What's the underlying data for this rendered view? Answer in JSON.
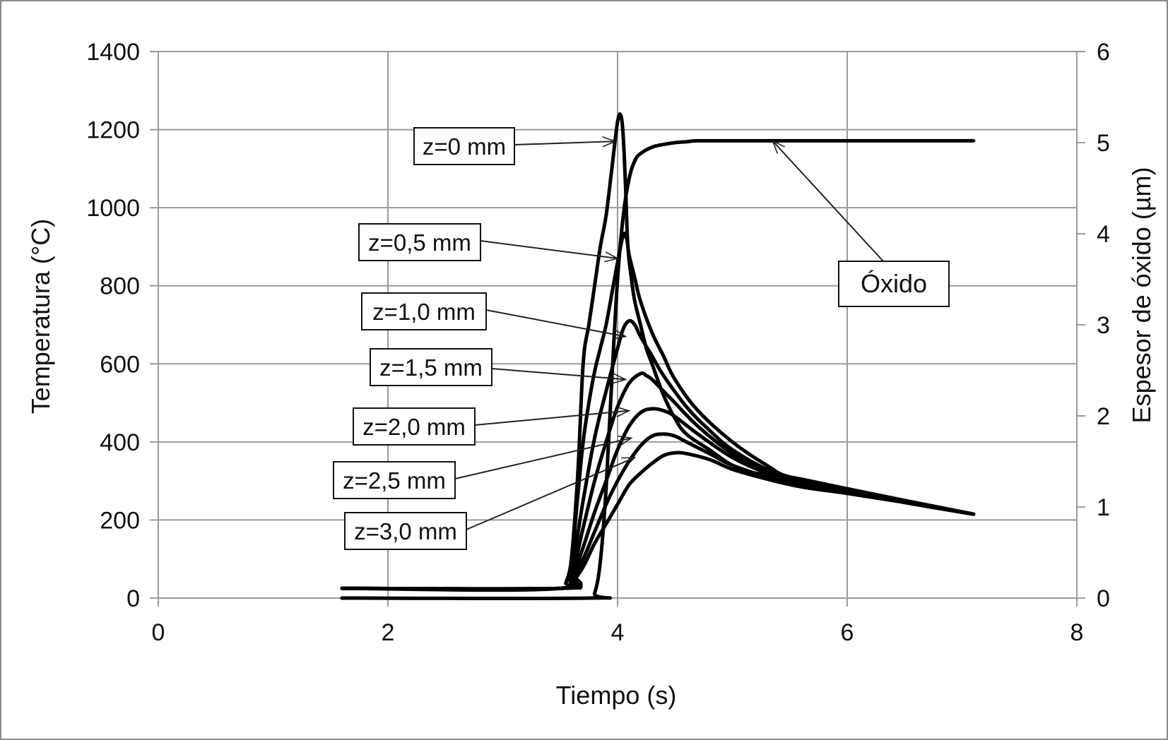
{
  "chart_data": {
    "type": "line",
    "title": "",
    "xlabel": "Tiempo (s)",
    "ylabel": "Temperatura (°C)",
    "y2label": "Espesor de óxido (µm)",
    "xlim": [
      0,
      8
    ],
    "ylim": [
      0,
      1400
    ],
    "y2lim": [
      0,
      6
    ],
    "xticks": [
      "0",
      "2",
      "4",
      "6",
      "8"
    ],
    "yticks": [
      "0",
      "200",
      "400",
      "600",
      "800",
      "1000",
      "1200",
      "1400"
    ],
    "y2ticks": [
      "0",
      "1",
      "2",
      "3",
      "4",
      "5",
      "6"
    ],
    "grid": true,
    "line_color": "#000000",
    "grid_color": "#9a9a9a",
    "series": [
      {
        "name": "z=0 mm",
        "axis": "left",
        "x": [
          1.6,
          3.5,
          3.58,
          3.65,
          3.7,
          3.75,
          3.8,
          3.85,
          3.9,
          3.95,
          4.0,
          4.03,
          4.05,
          4.07,
          4.09,
          4.12,
          4.15,
          4.2,
          4.25,
          4.3,
          4.4,
          4.5,
          4.6,
          4.8,
          5.0,
          5.2,
          5.5,
          6.0,
          6.5,
          7.1
        ],
        "y": [
          25,
          25,
          60,
          300,
          600,
          700,
          800,
          900,
          980,
          1100,
          1220,
          1235,
          1180,
          1050,
          900,
          820,
          760,
          700,
          640,
          600,
          520,
          460,
          420,
          380,
          340,
          320,
          310,
          280,
          250,
          215
        ]
      },
      {
        "name": "z=0,5 mm",
        "axis": "left",
        "x": [
          1.6,
          3.5,
          3.55,
          3.6,
          3.65,
          3.7,
          3.75,
          3.8,
          3.85,
          3.9,
          3.95,
          4.0,
          4.05,
          4.08,
          4.1,
          4.15,
          4.2,
          4.3,
          4.4,
          4.5,
          4.7,
          5.0,
          5.3,
          5.5,
          6.0,
          6.5,
          7.1
        ],
        "y": [
          25,
          25,
          40,
          100,
          250,
          400,
          500,
          580,
          640,
          700,
          780,
          860,
          930,
          920,
          880,
          820,
          760,
          680,
          620,
          560,
          480,
          400,
          340,
          310,
          280,
          250,
          215
        ]
      },
      {
        "name": "z=1,0 mm",
        "axis": "left",
        "x": [
          1.6,
          3.5,
          3.6,
          3.7,
          3.8,
          3.9,
          4.0,
          4.05,
          4.1,
          4.15,
          4.2,
          4.3,
          4.4,
          4.6,
          4.8,
          5.0,
          5.3,
          5.6,
          6.0,
          6.5,
          7.1
        ],
        "y": [
          25,
          25,
          80,
          250,
          410,
          530,
          640,
          690,
          710,
          700,
          670,
          620,
          570,
          490,
          430,
          380,
          330,
          300,
          275,
          245,
          215
        ]
      },
      {
        "name": "z=1,5 mm",
        "axis": "left",
        "x": [
          1.6,
          3.5,
          3.6,
          3.7,
          3.8,
          3.9,
          4.0,
          4.1,
          4.2,
          4.25,
          4.3,
          4.4,
          4.5,
          4.7,
          5.0,
          5.3,
          5.6,
          6.0,
          6.5,
          7.1
        ],
        "y": [
          25,
          25,
          60,
          180,
          300,
          400,
          490,
          550,
          575,
          570,
          560,
          530,
          500,
          440,
          370,
          325,
          295,
          275,
          245,
          215
        ]
      },
      {
        "name": "z=2,0 mm",
        "axis": "left",
        "x": [
          1.6,
          3.5,
          3.6,
          3.7,
          3.8,
          3.9,
          4.0,
          4.1,
          4.2,
          4.3,
          4.4,
          4.5,
          4.7,
          5.0,
          5.3,
          5.6,
          6.0,
          6.5,
          7.1
        ],
        "y": [
          25,
          25,
          50,
          130,
          220,
          300,
          380,
          440,
          475,
          485,
          480,
          465,
          420,
          360,
          320,
          290,
          272,
          245,
          215
        ]
      },
      {
        "name": "z=2,5 mm",
        "axis": "left",
        "x": [
          1.6,
          3.5,
          3.6,
          3.7,
          3.8,
          3.9,
          4.0,
          4.1,
          4.2,
          4.3,
          4.4,
          4.5,
          4.6,
          4.8,
          5.0,
          5.3,
          5.6,
          6.0,
          6.5,
          7.1
        ],
        "y": [
          25,
          25,
          45,
          100,
          170,
          240,
          300,
          350,
          390,
          415,
          420,
          415,
          400,
          370,
          340,
          310,
          285,
          270,
          245,
          215
        ]
      },
      {
        "name": "z=3,0 mm",
        "axis": "left",
        "x": [
          1.6,
          3.5,
          3.6,
          3.7,
          3.8,
          3.9,
          4.0,
          4.1,
          4.2,
          4.3,
          4.4,
          4.5,
          4.6,
          4.8,
          5.0,
          5.3,
          5.6,
          6.0,
          6.5,
          7.1
        ],
        "y": [
          25,
          25,
          40,
          80,
          140,
          190,
          240,
          290,
          320,
          345,
          365,
          372,
          370,
          355,
          330,
          305,
          285,
          268,
          245,
          215
        ]
      },
      {
        "name": "Óxido",
        "axis": "right",
        "x": [
          1.6,
          3.75,
          3.8,
          3.85,
          3.9,
          3.95,
          4.0,
          4.05,
          4.1,
          4.15,
          4.2,
          4.3,
          4.4,
          4.5,
          4.6,
          4.7,
          5.0,
          6.0,
          7.1
        ],
        "y": [
          0,
          0,
          0.05,
          0.4,
          1.2,
          2.4,
          3.5,
          4.2,
          4.6,
          4.8,
          4.88,
          4.95,
          4.98,
          5.0,
          5.01,
          5.02,
          5.02,
          5.02,
          5.02
        ]
      }
    ],
    "annotations": [
      {
        "text": "z=0 mm",
        "series": "z=0 mm",
        "arrow_to": [
          3.98,
          1170
        ]
      },
      {
        "text": "z=0,5 mm",
        "series": "z=0,5 mm",
        "arrow_to": [
          4.0,
          870
        ]
      },
      {
        "text": "z=1,0 mm",
        "series": "z=1,0 mm",
        "arrow_to": [
          4.07,
          670
        ]
      },
      {
        "text": "z=1,5 mm",
        "series": "z=1,5 mm",
        "arrow_to": [
          4.07,
          560
        ]
      },
      {
        "text": "z=2,0 mm",
        "series": "z=2,0 mm",
        "arrow_to": [
          4.1,
          480
        ]
      },
      {
        "text": "z=2,5 mm",
        "series": "z=2,5 mm",
        "arrow_to": [
          4.12,
          410
        ]
      },
      {
        "text": "z=3,0 mm",
        "series": "z=3,0 mm",
        "arrow_to": [
          4.15,
          360
        ]
      },
      {
        "text": "Óxido",
        "series": "Óxido",
        "arrow_to": [
          5.35,
          5.02
        ]
      }
    ]
  }
}
